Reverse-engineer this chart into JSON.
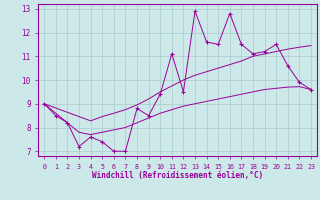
{
  "xlabel": "Windchill (Refroidissement éolien,°C)",
  "x_values": [
    0,
    1,
    2,
    3,
    4,
    5,
    6,
    7,
    8,
    9,
    10,
    11,
    12,
    13,
    14,
    15,
    16,
    17,
    18,
    19,
    20,
    21,
    22,
    23
  ],
  "y_main": [
    9.0,
    8.5,
    8.2,
    7.2,
    7.6,
    7.4,
    7.0,
    7.0,
    8.8,
    8.5,
    9.4,
    11.1,
    9.5,
    12.9,
    11.6,
    11.5,
    12.8,
    11.5,
    11.1,
    11.2,
    11.5,
    10.6,
    9.9,
    9.6
  ],
  "y_upper": [
    9.0,
    8.82,
    8.64,
    8.46,
    8.28,
    8.46,
    8.6,
    8.75,
    8.95,
    9.2,
    9.5,
    9.75,
    10.0,
    10.2,
    10.35,
    10.5,
    10.65,
    10.8,
    11.0,
    11.1,
    11.2,
    11.3,
    11.38,
    11.45
  ],
  "y_lower": [
    9.0,
    8.6,
    8.2,
    7.8,
    7.7,
    7.8,
    7.9,
    8.0,
    8.2,
    8.4,
    8.6,
    8.75,
    8.9,
    9.0,
    9.1,
    9.2,
    9.3,
    9.4,
    9.5,
    9.6,
    9.65,
    9.7,
    9.72,
    9.6
  ],
  "line_color": "#990099",
  "bg_color": "#cce8e8",
  "grid_color": "#aacccc",
  "xlim": [
    -0.5,
    23.5
  ],
  "ylim": [
    6.8,
    13.2
  ],
  "yticks": [
    7,
    8,
    9,
    10,
    11,
    12,
    13
  ],
  "xticks": [
    0,
    1,
    2,
    3,
    4,
    5,
    6,
    7,
    8,
    9,
    10,
    11,
    12,
    13,
    14,
    15,
    16,
    17,
    18,
    19,
    20,
    21,
    22,
    23
  ]
}
